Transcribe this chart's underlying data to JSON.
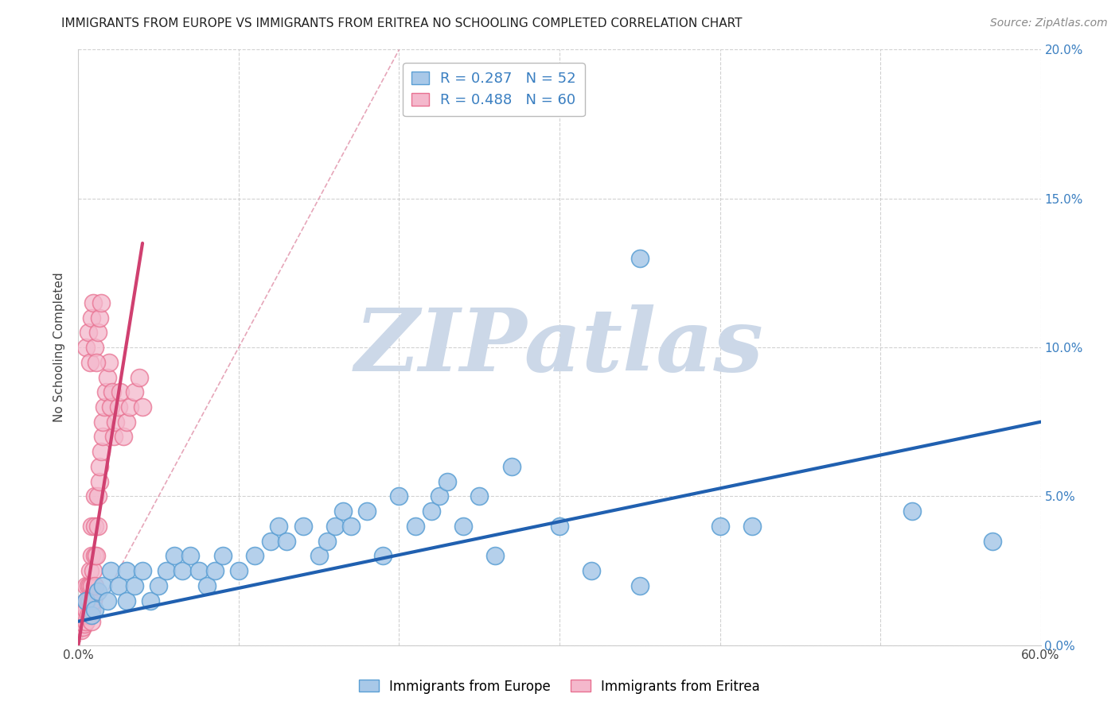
{
  "title": "IMMIGRANTS FROM EUROPE VS IMMIGRANTS FROM ERITREA NO SCHOOLING COMPLETED CORRELATION CHART",
  "source": "Source: ZipAtlas.com",
  "ylabel": "No Schooling Completed",
  "xlim": [
    0.0,
    0.6
  ],
  "ylim": [
    0.0,
    0.2
  ],
  "xticks": [
    0.0,
    0.1,
    0.2,
    0.3,
    0.4,
    0.5,
    0.6
  ],
  "xticklabels": [
    "0.0%",
    "",
    "",
    "",
    "",
    "",
    "60.0%"
  ],
  "yticks": [
    0.0,
    0.05,
    0.1,
    0.15,
    0.2
  ],
  "yticklabels_right": [
    "0.0%",
    "5.0%",
    "10.0%",
    "15.0%",
    "20.0%"
  ],
  "legend_r1": "R = 0.287   N = 52",
  "legend_r2": "R = 0.488   N = 60",
  "blue_color": "#a8c8e8",
  "pink_color": "#f4b8cc",
  "blue_edge_color": "#5a9fd4",
  "pink_edge_color": "#e87090",
  "blue_line_color": "#2060b0",
  "pink_line_color": "#d04070",
  "ref_line_color": "#e090a8",
  "watermark": "ZIPatlas",
  "watermark_color": "#ccd8e8",
  "blue_points_x": [
    0.005,
    0.008,
    0.01,
    0.012,
    0.015,
    0.018,
    0.02,
    0.025,
    0.03,
    0.03,
    0.035,
    0.04,
    0.045,
    0.05,
    0.055,
    0.06,
    0.065,
    0.07,
    0.075,
    0.08,
    0.085,
    0.09,
    0.1,
    0.11,
    0.12,
    0.125,
    0.13,
    0.14,
    0.15,
    0.155,
    0.16,
    0.165,
    0.17,
    0.18,
    0.19,
    0.2,
    0.21,
    0.22,
    0.225,
    0.23,
    0.24,
    0.25,
    0.26,
    0.27,
    0.3,
    0.32,
    0.35,
    0.4,
    0.35,
    0.42,
    0.52,
    0.57
  ],
  "blue_points_y": [
    0.015,
    0.01,
    0.012,
    0.018,
    0.02,
    0.015,
    0.025,
    0.02,
    0.015,
    0.025,
    0.02,
    0.025,
    0.015,
    0.02,
    0.025,
    0.03,
    0.025,
    0.03,
    0.025,
    0.02,
    0.025,
    0.03,
    0.025,
    0.03,
    0.035,
    0.04,
    0.035,
    0.04,
    0.03,
    0.035,
    0.04,
    0.045,
    0.04,
    0.045,
    0.03,
    0.05,
    0.04,
    0.045,
    0.05,
    0.055,
    0.04,
    0.05,
    0.03,
    0.06,
    0.04,
    0.025,
    0.02,
    0.04,
    0.13,
    0.04,
    0.045,
    0.035
  ],
  "pink_points_x": [
    0.002,
    0.003,
    0.004,
    0.005,
    0.005,
    0.005,
    0.005,
    0.005,
    0.006,
    0.006,
    0.006,
    0.007,
    0.007,
    0.007,
    0.007,
    0.008,
    0.008,
    0.008,
    0.008,
    0.008,
    0.009,
    0.009,
    0.01,
    0.01,
    0.01,
    0.01,
    0.011,
    0.012,
    0.012,
    0.013,
    0.013,
    0.014,
    0.015,
    0.015,
    0.016,
    0.017,
    0.018,
    0.019,
    0.02,
    0.021,
    0.022,
    0.023,
    0.025,
    0.026,
    0.028,
    0.03,
    0.032,
    0.035,
    0.038,
    0.04,
    0.005,
    0.006,
    0.007,
    0.008,
    0.009,
    0.01,
    0.011,
    0.012,
    0.013,
    0.014
  ],
  "pink_points_y": [
    0.005,
    0.006,
    0.007,
    0.008,
    0.01,
    0.012,
    0.015,
    0.02,
    0.01,
    0.015,
    0.02,
    0.01,
    0.015,
    0.02,
    0.025,
    0.008,
    0.012,
    0.02,
    0.03,
    0.04,
    0.015,
    0.025,
    0.02,
    0.03,
    0.04,
    0.05,
    0.03,
    0.04,
    0.05,
    0.055,
    0.06,
    0.065,
    0.07,
    0.075,
    0.08,
    0.085,
    0.09,
    0.095,
    0.08,
    0.085,
    0.07,
    0.075,
    0.08,
    0.085,
    0.07,
    0.075,
    0.08,
    0.085,
    0.09,
    0.08,
    0.1,
    0.105,
    0.095,
    0.11,
    0.115,
    0.1,
    0.095,
    0.105,
    0.11,
    0.115
  ],
  "blue_line_x": [
    0.0,
    0.6
  ],
  "blue_line_y": [
    0.008,
    0.075
  ],
  "pink_line_x": [
    0.0,
    0.04
  ],
  "pink_line_y": [
    0.0,
    0.135
  ],
  "ref_line_x": [
    0.0,
    0.2
  ],
  "ref_line_y": [
    0.0,
    0.2
  ],
  "title_fontsize": 11,
  "source_fontsize": 10,
  "tick_fontsize": 11,
  "ylabel_fontsize": 11
}
